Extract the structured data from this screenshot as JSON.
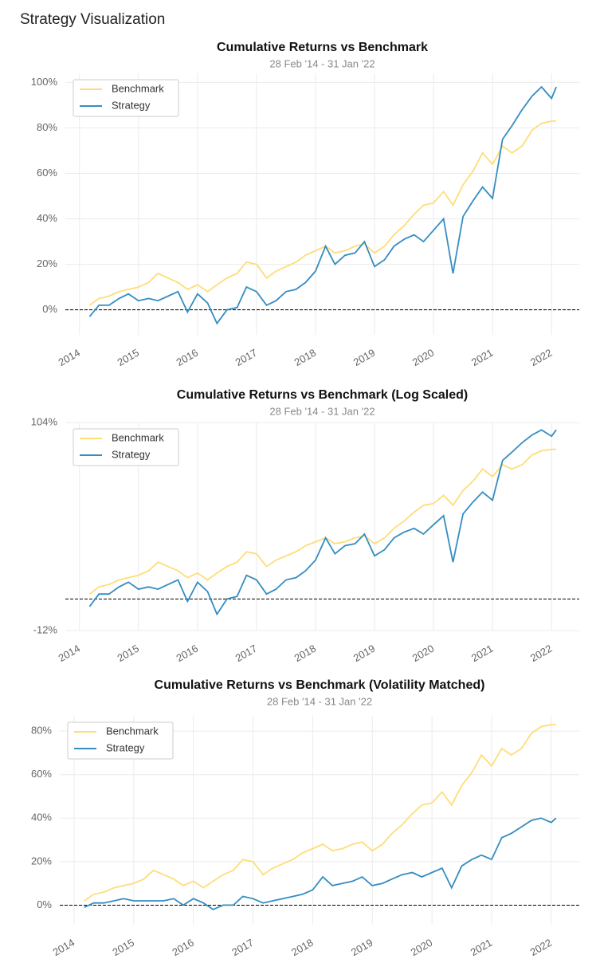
{
  "heading": "Strategy Visualization",
  "chart_data": [
    {
      "type": "line",
      "title": "Cumulative Returns vs Benchmark",
      "subtitle": "28 Feb '14 - 31 Jan '22",
      "x": [
        2014.17,
        2014.33,
        2014.5,
        2014.67,
        2014.83,
        2015,
        2015.17,
        2015.33,
        2015.5,
        2015.67,
        2015.83,
        2016,
        2016.17,
        2016.33,
        2016.5,
        2016.67,
        2016.83,
        2017,
        2017.17,
        2017.33,
        2017.5,
        2017.67,
        2017.83,
        2018,
        2018.17,
        2018.33,
        2018.5,
        2018.67,
        2018.83,
        2019,
        2019.17,
        2019.33,
        2019.5,
        2019.67,
        2019.83,
        2020,
        2020.17,
        2020.33,
        2020.5,
        2020.67,
        2020.83,
        2021,
        2021.17,
        2021.33,
        2021.5,
        2021.67,
        2021.83,
        2022,
        2022.08
      ],
      "series": [
        {
          "name": "Benchmark",
          "color": "#fedd78",
          "values": [
            2,
            5,
            6,
            8,
            9,
            10,
            12,
            16,
            14,
            12,
            9,
            11,
            8,
            11,
            14,
            16,
            21,
            20,
            14,
            17,
            19,
            21,
            24,
            26,
            28,
            25,
            26,
            28,
            29,
            25,
            28,
            33,
            37,
            42,
            46,
            47,
            52,
            46,
            55,
            61,
            69,
            64,
            72,
            69,
            72,
            79,
            82,
            83,
            83
          ]
        },
        {
          "name": "Strategy",
          "color": "#348dc1",
          "values": [
            -3,
            2,
            2,
            5,
            7,
            4,
            5,
            4,
            6,
            8,
            -1,
            7,
            3,
            -6,
            0,
            1,
            10,
            8,
            2,
            4,
            8,
            9,
            12,
            17,
            28,
            20,
            24,
            25,
            30,
            19,
            22,
            28,
            31,
            33,
            30,
            35,
            40,
            16,
            41,
            48,
            54,
            49,
            75,
            81,
            88,
            94,
            98,
            93,
            98
          ]
        }
      ],
      "xlim": [
        2013.76,
        2022.47
      ],
      "xticks": [
        2014,
        2015,
        2016,
        2017,
        2018,
        2019,
        2020,
        2021,
        2022
      ],
      "ylim": [
        -11,
        104
      ],
      "yticks": [
        {
          "value": 0,
          "label": "0%"
        },
        {
          "value": 20,
          "label": "20%"
        },
        {
          "value": 40,
          "label": "40%"
        },
        {
          "value": 60,
          "label": "60%"
        },
        {
          "value": 80,
          "label": "80%"
        },
        {
          "value": 100,
          "label": "100%"
        }
      ],
      "grid": true,
      "legend": "upper left",
      "zero_line": true,
      "log_scale": false
    },
    {
      "type": "line",
      "title": "Cumulative Returns vs Benchmark (Log Scaled)",
      "subtitle": "28 Feb '14 - 31 Jan '22",
      "x": [
        2014.17,
        2014.33,
        2014.5,
        2014.67,
        2014.83,
        2015,
        2015.17,
        2015.33,
        2015.5,
        2015.67,
        2015.83,
        2016,
        2016.17,
        2016.33,
        2016.5,
        2016.67,
        2016.83,
        2017,
        2017.17,
        2017.33,
        2017.5,
        2017.67,
        2017.83,
        2018,
        2018.17,
        2018.33,
        2018.5,
        2018.67,
        2018.83,
        2019,
        2019.17,
        2019.33,
        2019.5,
        2019.67,
        2019.83,
        2020,
        2020.17,
        2020.33,
        2020.5,
        2020.67,
        2020.83,
        2021,
        2021.17,
        2021.33,
        2021.5,
        2021.67,
        2021.83,
        2022,
        2022.08
      ],
      "series": [
        {
          "name": "Benchmark",
          "color": "#fedd78",
          "values": [
            2,
            5,
            6,
            8,
            9,
            10,
            12,
            16,
            14,
            12,
            9,
            11,
            8,
            11,
            14,
            16,
            21,
            20,
            14,
            17,
            19,
            21,
            24,
            26,
            28,
            25,
            26,
            28,
            29,
            25,
            28,
            33,
            37,
            42,
            46,
            47,
            52,
            46,
            55,
            61,
            69,
            64,
            72,
            69,
            72,
            79,
            82,
            83,
            83
          ]
        },
        {
          "name": "Strategy",
          "color": "#348dc1",
          "values": [
            -3,
            2,
            2,
            5,
            7,
            4,
            5,
            4,
            6,
            8,
            -1,
            7,
            3,
            -6,
            0,
            1,
            10,
            8,
            2,
            4,
            8,
            9,
            12,
            17,
            28,
            20,
            24,
            25,
            30,
            19,
            22,
            28,
            31,
            33,
            30,
            35,
            40,
            16,
            41,
            48,
            54,
            49,
            75,
            81,
            88,
            94,
            98,
            93,
            98
          ]
        }
      ],
      "xlim": [
        2013.76,
        2022.47
      ],
      "xticks": [
        2014,
        2015,
        2016,
        2017,
        2018,
        2019,
        2020,
        2021,
        2022
      ],
      "ylim": [
        -12,
        104
      ],
      "yticks": [
        {
          "value": -12,
          "label": "-12%"
        },
        {
          "value": 104,
          "label": "104%"
        }
      ],
      "grid": true,
      "legend": "upper left",
      "zero_line": true,
      "log_scale": true
    },
    {
      "type": "line",
      "title": "Cumulative Returns vs Benchmark (Volatility Matched)",
      "subtitle": "28 Feb '14 - 31 Jan '22",
      "x": [
        2014.17,
        2014.33,
        2014.5,
        2014.67,
        2014.83,
        2015,
        2015.17,
        2015.33,
        2015.5,
        2015.67,
        2015.83,
        2016,
        2016.17,
        2016.33,
        2016.5,
        2016.67,
        2016.83,
        2017,
        2017.17,
        2017.33,
        2017.5,
        2017.67,
        2017.83,
        2018,
        2018.17,
        2018.33,
        2018.5,
        2018.67,
        2018.83,
        2019,
        2019.17,
        2019.33,
        2019.5,
        2019.67,
        2019.83,
        2020,
        2020.17,
        2020.33,
        2020.5,
        2020.67,
        2020.83,
        2021,
        2021.17,
        2021.33,
        2021.5,
        2021.67,
        2021.83,
        2022,
        2022.08
      ],
      "series": [
        {
          "name": "Benchmark",
          "color": "#fedd78",
          "values": [
            2,
            5,
            6,
            8,
            9,
            10,
            12,
            16,
            14,
            12,
            9,
            11,
            8,
            11,
            14,
            16,
            21,
            20,
            14,
            17,
            19,
            21,
            24,
            26,
            28,
            25,
            26,
            28,
            29,
            25,
            28,
            33,
            37,
            42,
            46,
            47,
            52,
            46,
            55,
            61,
            69,
            64,
            72,
            69,
            72,
            79,
            82,
            83,
            83
          ]
        },
        {
          "name": "Strategy",
          "color": "#348dc1",
          "values": [
            -1,
            1,
            1,
            2,
            3,
            2,
            2,
            2,
            2,
            3,
            0,
            3,
            1,
            -2,
            0,
            0,
            4,
            3,
            1,
            2,
            3,
            4,
            5,
            7,
            13,
            9,
            10,
            11,
            13,
            9,
            10,
            12,
            14,
            15,
            13,
            15,
            17,
            8,
            18,
            21,
            23,
            21,
            31,
            33,
            36,
            39,
            40,
            38,
            40
          ]
        }
      ],
      "xlim": [
        2013.76,
        2022.47
      ],
      "xticks": [
        2014,
        2015,
        2016,
        2017,
        2018,
        2019,
        2020,
        2021,
        2022
      ],
      "ylim": [
        -9,
        87
      ],
      "yticks": [
        {
          "value": 0,
          "label": "0%"
        },
        {
          "value": 20,
          "label": "20%"
        },
        {
          "value": 40,
          "label": "40%"
        },
        {
          "value": 60,
          "label": "60%"
        },
        {
          "value": 80,
          "label": "80%"
        }
      ],
      "grid": true,
      "legend": "upper left",
      "zero_line": true,
      "log_scale": false
    }
  ]
}
